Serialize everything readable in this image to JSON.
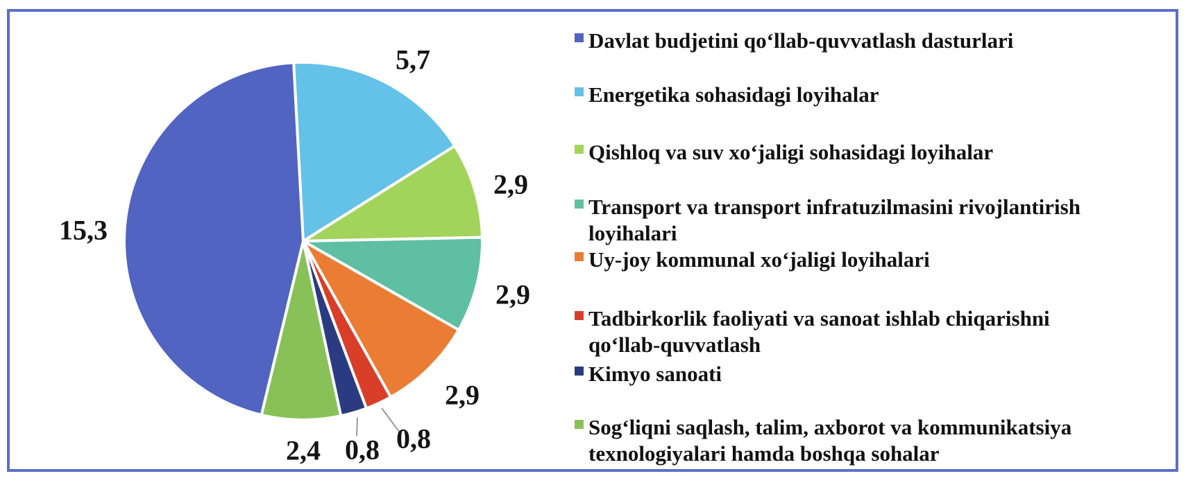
{
  "frame": {
    "border_color": "#5b6fc8",
    "background": "#ffffff"
  },
  "chart_data": {
    "type": "pie",
    "title": "",
    "legend_position": "right",
    "number_format": "comma-decimal",
    "values_total": 33.7,
    "start_angle_deg": 193.5,
    "slices": [
      {
        "label": "Davlat budjetini qo‘llab-quvvatlash dasturlari",
        "value": 15.3,
        "display_value": "15,3",
        "color": "#5164c1"
      },
      {
        "label": "Energetika sohasidagi loyihalar",
        "value": 5.7,
        "display_value": "5,7",
        "color": "#64c1e8"
      },
      {
        "label": "Qishloq va suv xo‘jaligi sohasidagi loyihalar",
        "value": 2.9,
        "display_value": "2,9",
        "color": "#a2d45b"
      },
      {
        "label": "Transport va transport infratuzilmasini rivojlantirish loyihalari",
        "value": 2.9,
        "display_value": "2,9",
        "color": "#5fbfa2"
      },
      {
        "label": "Uy-joy kommunal xo‘jaligi loyihalari",
        "value": 2.9,
        "display_value": "2,9",
        "color": "#eb7c34"
      },
      {
        "label": "Tadbirkorlik faoliyati va sanoat ishlab chiqarishni qo‘llab-quvvatlash",
        "value": 0.8,
        "display_value": "0,8",
        "color": "#d93e29"
      },
      {
        "label": "Kimyo sanoati",
        "value": 0.8,
        "display_value": "0,8",
        "color": "#2b3b82"
      },
      {
        "label": "Sog‘liqni saqlash, talim, axborot va kommunikatsiya texnologiyalari hamda boshqa sohalar",
        "value": 2.4,
        "display_value": "2,4",
        "color": "#87c158"
      }
    ]
  },
  "legend": {
    "items": [
      {
        "text": "Davlat budjetini qo‘llab-quvvatlash dasturlari"
      },
      {
        "text": "Energetika sohasidagi loyihalar"
      },
      {
        "text": "Qishloq va suv xo‘jaligi sohasidagi loyihalar"
      },
      {
        "text": "Transport va transport infratuzilmasini rivojlantirish\nloyihalari"
      },
      {
        "text": "Uy-joy kommunal xo‘jaligi loyihalari"
      },
      {
        "text": "Tadbirkorlik faoliyati va sanoat ishlab chiqarishni\nqo‘llab-quvvatlash"
      },
      {
        "text": "Kimyo sanoati"
      },
      {
        "text": "Sog‘liqni saqlash, talim, axborot va kommunikatsiya\ntexnologiyalari hamda boshqa sohalar"
      }
    ]
  }
}
